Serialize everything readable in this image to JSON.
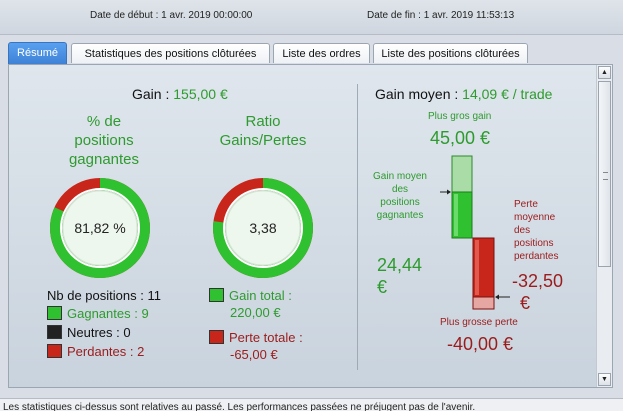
{
  "header": {
    "start_label": "Date de début :",
    "start_value": "1 avr. 2019 00:00:00",
    "end_label": "Date de fin :",
    "end_value": "1 avr. 2019 11:53:13"
  },
  "tabs": [
    {
      "label": "Résumé",
      "active": true
    },
    {
      "label": "Statistiques des positions clôturées",
      "active": false
    },
    {
      "label": "Liste des ordres",
      "active": false
    },
    {
      "label": "Liste des positions clôturées",
      "active": false
    }
  ],
  "left": {
    "gain_label": "Gain :",
    "gain_value": "155,00 €",
    "pct_title_1": "% de",
    "pct_title_2": "positions",
    "pct_title_3": "gagnantes",
    "pct_value": "81,82 %",
    "pct_fraction": 0.8182,
    "ratio_title_1": "Ratio",
    "ratio_title_2": "Gains/Pertes",
    "ratio_value": "3,38",
    "ratio_fraction": 0.7718,
    "nb_positions_label": "Nb de positions :",
    "nb_positions_value": "11",
    "gagnantes": "Gagnantes : 9",
    "neutres": "Neutres : 0",
    "perdantes": "Perdantes : 2",
    "gain_total_label": "Gain total :",
    "gain_total_value": "220,00 €",
    "perte_totale_label": "Perte totale :",
    "perte_totale_value": "-65,00 €"
  },
  "right": {
    "gain_moyen_label": "Gain moyen :",
    "gain_moyen_value": "14,09 € / trade",
    "plus_gros_gain_label": "Plus gros gain",
    "plus_gros_gain_value": "45,00 €",
    "gain_moyen_gagnantes_1": "Gain moyen",
    "gain_moyen_gagnantes_2": "des",
    "gain_moyen_gagnantes_3": "positions",
    "gain_moyen_gagnantes_4": "gagnantes",
    "avg_win_value_1": "24,44",
    "avg_win_value_2": "€",
    "perte_moyenne_1": "Perte",
    "perte_moyenne_2": "moyenne",
    "perte_moyenne_3": "des",
    "perte_moyenne_4": "positions",
    "perte_moyenne_5": "perdantes",
    "avg_loss_value_1": "-32,50",
    "avg_loss_value_2": "€",
    "plus_grosse_perte_label": "Plus grosse perte",
    "plus_grosse_perte_value": "-40,00 €"
  },
  "footer": {
    "text": "Les statistiques ci-dessus sont relatives au passé. Les performances passées ne préjugent pas de l'avenir."
  },
  "colors": {
    "green": "#2e9b2e",
    "green_bar": "#2fc12f",
    "red_bar": "#c8261b",
    "dark_red_text": "#9b1c1c",
    "active_tab": "#3d82d6"
  }
}
